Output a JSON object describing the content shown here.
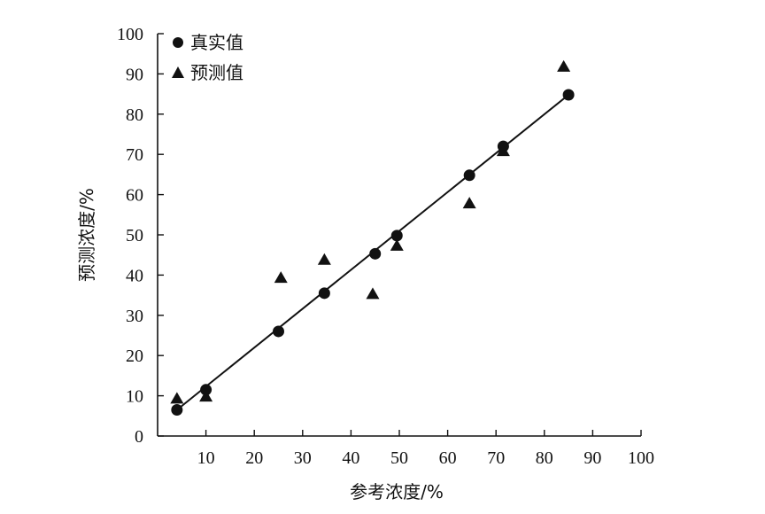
{
  "chart_data": {
    "type": "scatter",
    "title": "",
    "xlabel": "参考浓度/%",
    "ylabel": "预测浓度/%",
    "xlim": [
      0,
      100
    ],
    "ylim": [
      0,
      100
    ],
    "x_ticks": [
      "10",
      "20",
      "30",
      "40",
      "50",
      "60",
      "70",
      "80",
      "90",
      "100"
    ],
    "y_ticks": [
      "0",
      "10",
      "20",
      "30",
      "40",
      "50",
      "60",
      "70",
      "80",
      "90",
      "100"
    ],
    "grid": false,
    "legend_position": "top-left",
    "series": [
      {
        "name": "真实值",
        "marker": "circle",
        "points": [
          [
            4,
            6.5
          ],
          [
            10,
            11.5
          ],
          [
            25,
            26
          ],
          [
            34.5,
            35.5
          ],
          [
            45,
            45.3
          ],
          [
            49.5,
            49.8
          ],
          [
            64.5,
            64.8
          ],
          [
            71.5,
            72
          ],
          [
            85,
            84.8
          ]
        ]
      },
      {
        "name": "预测值",
        "marker": "triangle",
        "points": [
          [
            4,
            9.5
          ],
          [
            10,
            10
          ],
          [
            25.5,
            39.5
          ],
          [
            34.5,
            44
          ],
          [
            44.5,
            35.5
          ],
          [
            49.5,
            47.5
          ],
          [
            64.5,
            58
          ],
          [
            71.5,
            71
          ],
          [
            84,
            92
          ]
        ]
      }
    ],
    "fit_line": {
      "x": [
        4,
        85
      ],
      "y": [
        6.5,
        84.8
      ]
    }
  }
}
